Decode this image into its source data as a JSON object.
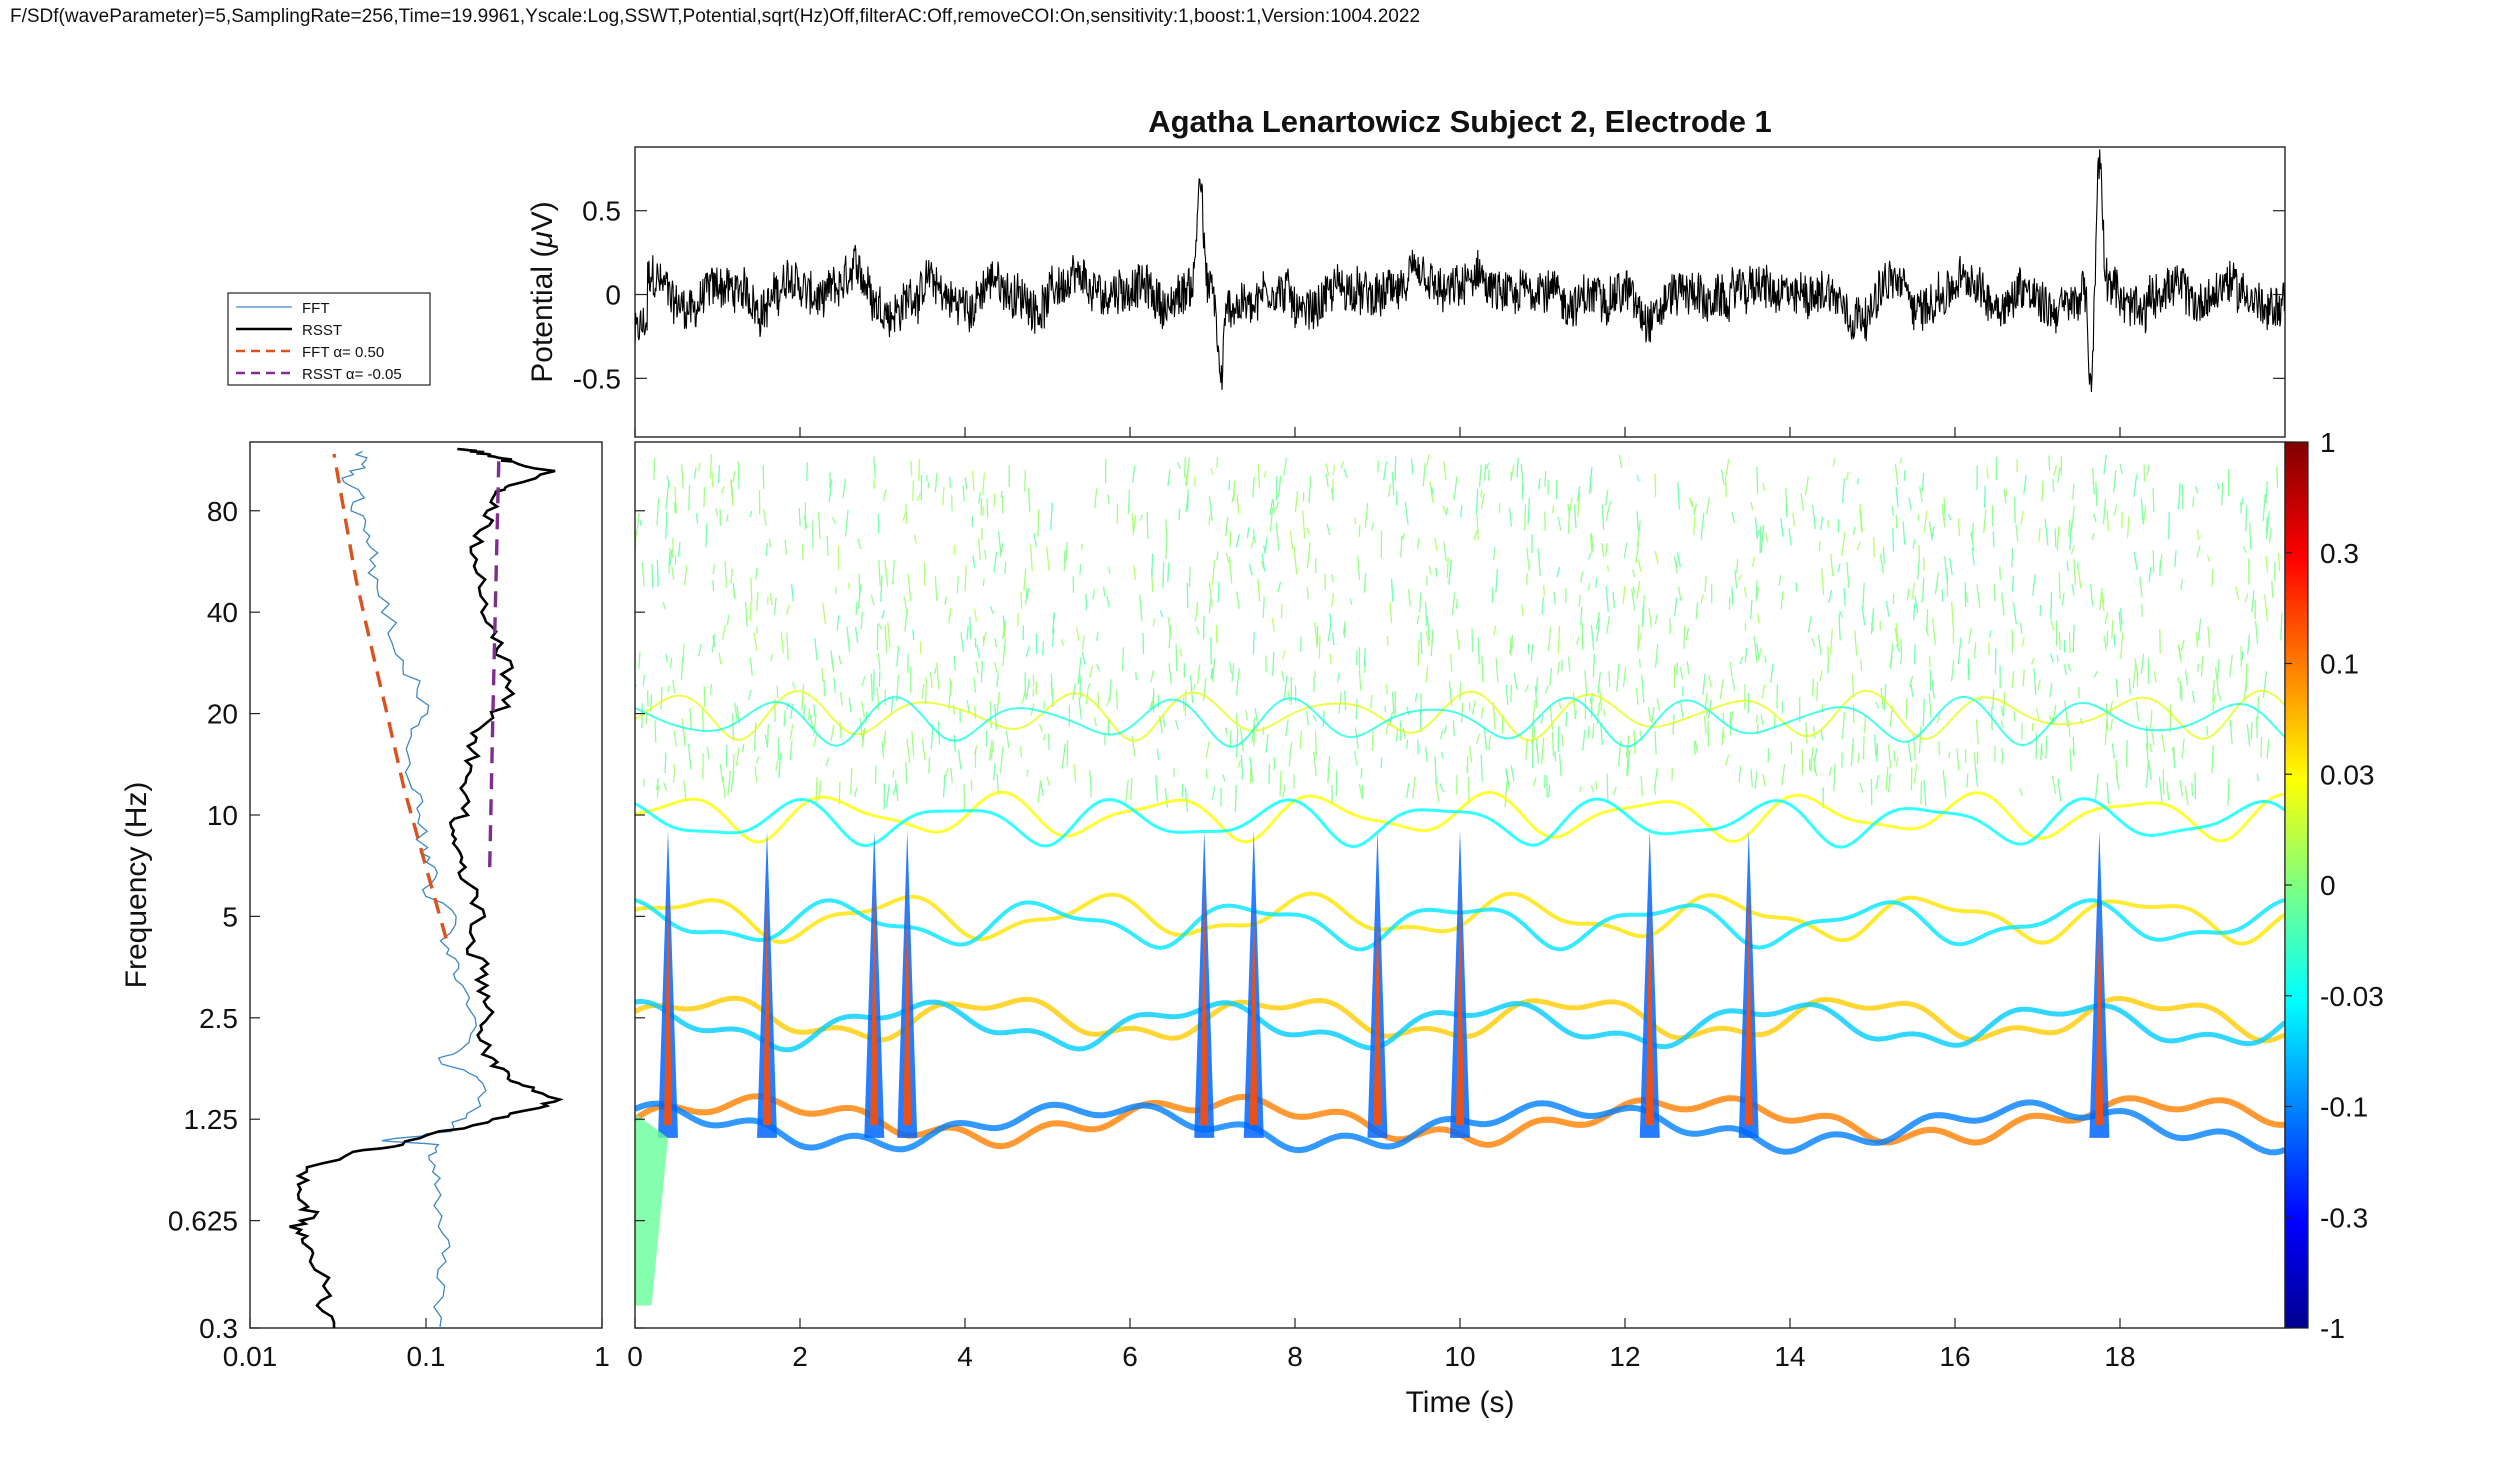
{
  "header": {
    "params": "F/SDf(waveParameter)=5,SamplingRate=256,Time=19.9961,Yscale:Log,SSWT,Potential,sqrt(Hz)Off,filterAC:Off,removeCOI:On,sensitivity:1,boost:1,Version:1004.2022"
  },
  "colors": {
    "fft": "#3f88c5",
    "rsst": "#000000",
    "fft_fit": "#d9531e",
    "rsst_fit": "#7e2f8e",
    "axis": "#222222"
  },
  "chart_data": [
    {
      "id": "potential-trace",
      "type": "line",
      "title": "Agatha Lenartowicz Subject 2, Electrode 1",
      "ylabel_main": "Potential (",
      "ylabel_sym": "μ",
      "ylabel_unit": "V)",
      "xlim": [
        0,
        20
      ],
      "ylim": [
        -0.85,
        0.88
      ],
      "yticks": [
        -0.5,
        0,
        0.5
      ],
      "ytick_labels": [
        "-0.5",
        "0",
        "0.5"
      ],
      "events": [
        {
          "t": 6.85,
          "v": 0.85
        },
        {
          "t": 17.75,
          "v": 0.85
        },
        {
          "t": 17.65,
          "v": -0.7
        },
        {
          "t": 7.1,
          "v": -0.6
        }
      ],
      "noise_amplitude": 0.18
    },
    {
      "id": "spectrum-side",
      "type": "line",
      "xscale": "log",
      "yscale": "log",
      "xlim": [
        0.01,
        1
      ],
      "ylim": [
        0.3,
        128
      ],
      "xticks": [
        0.01,
        0.1,
        1
      ],
      "xtick_labels": [
        "0.01",
        "0.1",
        "1"
      ],
      "yticks": [
        0.3,
        0.625,
        1.25,
        2.5,
        5,
        10,
        20,
        40,
        80
      ],
      "ytick_labels": [
        "0.3",
        "0.625",
        "1.25",
        "2.5",
        "5",
        "10",
        "20",
        "40",
        "80"
      ],
      "ylabel": "Frequency (Hz)",
      "series": [
        {
          "name": "FFT",
          "points": [
            [
              0.12,
              0.3
            ],
            [
              0.12,
              0.4
            ],
            [
              0.13,
              0.5
            ],
            [
              0.12,
              0.6
            ],
            [
              0.12,
              0.8
            ],
            [
              0.11,
              0.95
            ],
            [
              0.11,
              1.05
            ],
            [
              0.06,
              1.08
            ],
            [
              0.13,
              1.15
            ],
            [
              0.18,
              1.3
            ],
            [
              0.22,
              1.6
            ],
            [
              0.16,
              1.75
            ],
            [
              0.11,
              1.9
            ],
            [
              0.16,
              2
            ],
            [
              0.19,
              2.5
            ],
            [
              0.16,
              3
            ],
            [
              0.15,
              3.5
            ],
            [
              0.13,
              4
            ],
            [
              0.14,
              5
            ],
            [
              0.1,
              6
            ],
            [
              0.11,
              7
            ],
            [
              0.095,
              8
            ],
            [
              0.1,
              10
            ],
            [
              0.085,
              12
            ],
            [
              0.08,
              15
            ],
            [
              0.09,
              18
            ],
            [
              0.1,
              20
            ],
            [
              0.085,
              25
            ],
            [
              0.07,
              30
            ],
            [
              0.06,
              40
            ],
            [
              0.05,
              50
            ],
            [
              0.05,
              60
            ],
            [
              0.045,
              70
            ],
            [
              0.04,
              80
            ],
            [
              0.045,
              90
            ],
            [
              0.035,
              100
            ],
            [
              0.045,
              110
            ],
            [
              0.04,
              120
            ]
          ]
        },
        {
          "name": "RSST",
          "points": [
            [
              0.03,
              0.3
            ],
            [
              0.025,
              0.35
            ],
            [
              0.028,
              0.4
            ],
            [
              0.022,
              0.5
            ],
            [
              0.02,
              0.55
            ],
            [
              0.018,
              0.6
            ],
            [
              0.023,
              0.65
            ],
            [
              0.02,
              0.7
            ],
            [
              0.019,
              0.8
            ],
            [
              0.022,
              0.9
            ],
            [
              0.04,
              1.0
            ],
            [
              0.07,
              1.05
            ],
            [
              0.13,
              1.15
            ],
            [
              0.25,
              1.25
            ],
            [
              0.42,
              1.35
            ],
            [
              0.55,
              1.43
            ],
            [
              0.4,
              1.55
            ],
            [
              0.3,
              1.65
            ],
            [
              0.25,
              1.8
            ],
            [
              0.22,
              2
            ],
            [
              0.2,
              2.3
            ],
            [
              0.24,
              2.6
            ],
            [
              0.2,
              3
            ],
            [
              0.22,
              3.5
            ],
            [
              0.18,
              4
            ],
            [
              0.2,
              5
            ],
            [
              0.18,
              6
            ],
            [
              0.16,
              7
            ],
            [
              0.15,
              8
            ],
            [
              0.14,
              9
            ],
            [
              0.16,
              10
            ],
            [
              0.17,
              12
            ],
            [
              0.18,
              14
            ],
            [
              0.19,
              16
            ],
            [
              0.2,
              18
            ],
            [
              0.28,
              21
            ],
            [
              0.3,
              25
            ],
            [
              0.27,
              30
            ],
            [
              0.24,
              35
            ],
            [
              0.22,
              40
            ],
            [
              0.2,
              50
            ],
            [
              0.19,
              60
            ],
            [
              0.21,
              70
            ],
            [
              0.24,
              80
            ],
            [
              0.26,
              90
            ],
            [
              0.3,
              95
            ],
            [
              0.5,
              105
            ],
            [
              0.3,
              112
            ],
            [
              0.27,
              115
            ],
            [
              0.22,
              118
            ],
            [
              0.19,
              120
            ],
            [
              0.15,
              122
            ]
          ]
        },
        {
          "name": "FFT α= 0.50",
          "points": [
            [
              0.13,
              4.3
            ],
            [
              0.1,
              7
            ],
            [
              0.075,
              12
            ],
            [
              0.06,
              20
            ],
            [
              0.05,
              30
            ],
            [
              0.04,
              50
            ],
            [
              0.03,
              118
            ]
          ]
        },
        {
          "name": "RSST α= -0.05",
          "points": [
            [
              0.23,
              7
            ],
            [
              0.24,
              20
            ],
            [
              0.25,
              50
            ],
            [
              0.26,
              120
            ]
          ]
        }
      ]
    },
    {
      "id": "sswt-map",
      "type": "heatmap",
      "xlabel": "Time (s)",
      "xlim": [
        0,
        20
      ],
      "xticks": [
        0,
        2,
        4,
        6,
        8,
        10,
        12,
        14,
        16,
        18
      ],
      "xtick_labels": [
        "0",
        "2",
        "4",
        "6",
        "8",
        "10",
        "12",
        "14",
        "16",
        "18"
      ],
      "ylim": [
        0.3,
        128
      ],
      "yscale": "log",
      "ridges": [
        {
          "f": 1.25,
          "amp": 0.5,
          "color_weight": 1.0
        },
        {
          "f": 2.5,
          "amp": 0.35,
          "color_weight": 0.75
        },
        {
          "f": 5.0,
          "amp": 0.3,
          "color_weight": 0.55
        },
        {
          "f": 10,
          "amp": 0.25,
          "color_weight": 0.45
        },
        {
          "f": 20,
          "amp": 0.2,
          "color_weight": 0.4
        }
      ],
      "bursts": [
        0.4,
        1.6,
        2.9,
        3.3,
        6.9,
        7.5,
        9.0,
        10.0,
        12.3,
        13.5,
        17.75
      ],
      "colorbar": {
        "ticks": [
          1,
          0.3,
          0.1,
          0.03,
          0,
          -0.03,
          -0.1,
          -0.3,
          -1
        ],
        "tick_labels": [
          "1",
          "0.3",
          "0.1",
          "0.03",
          "0",
          "-0.03",
          "-0.1",
          "-0.3",
          "-1"
        ]
      }
    }
  ]
}
